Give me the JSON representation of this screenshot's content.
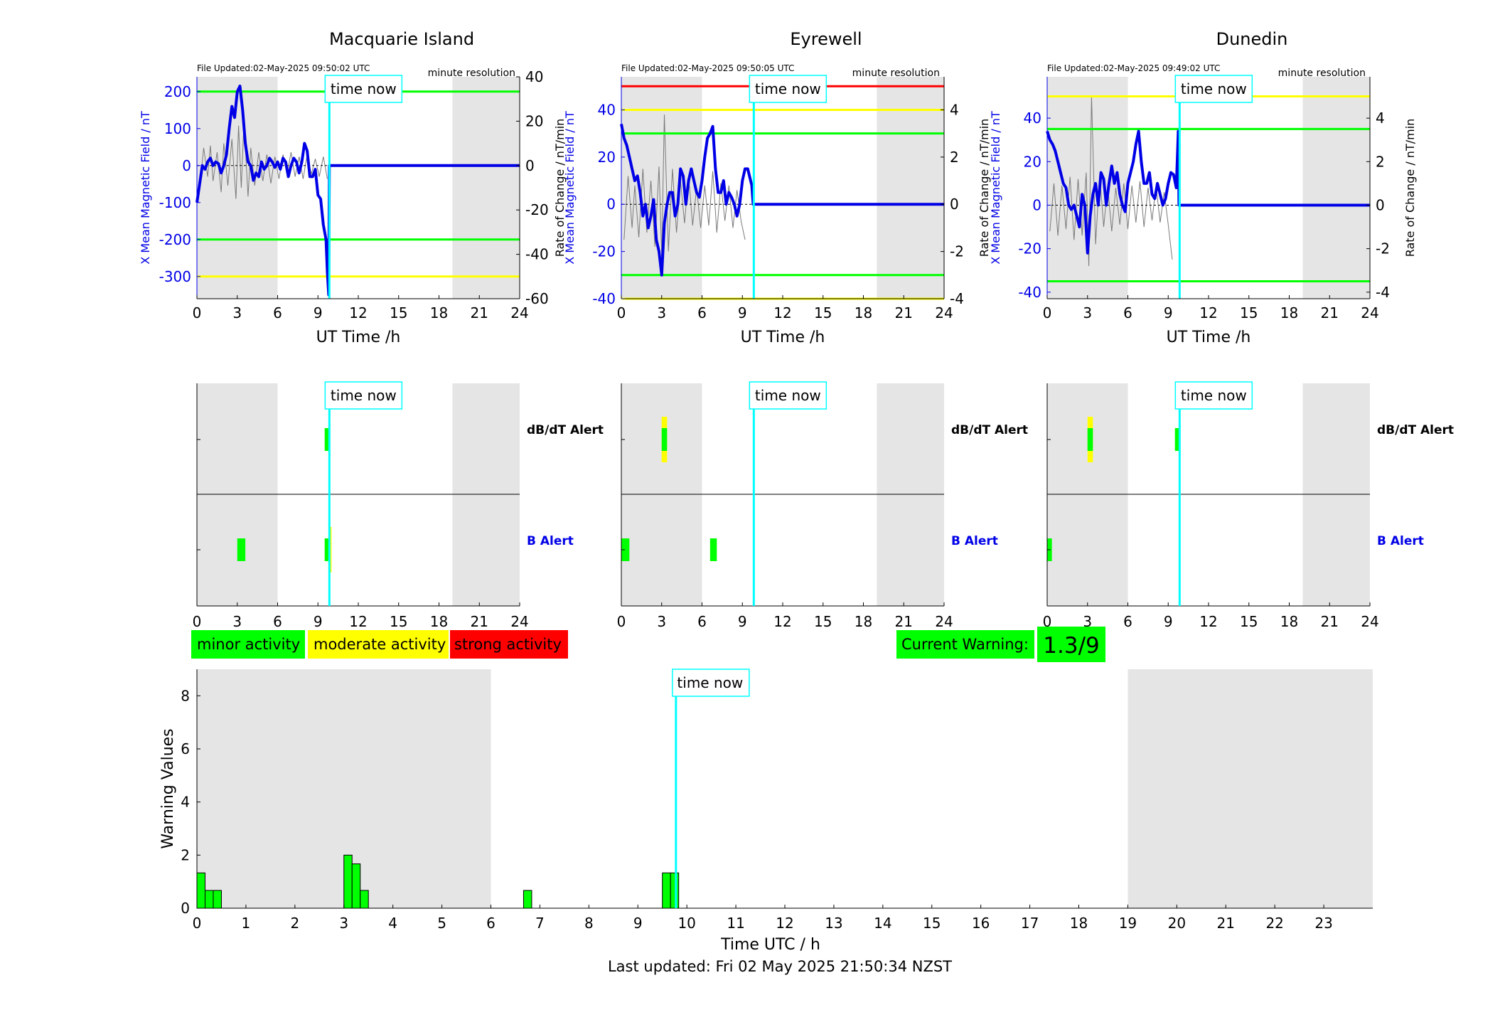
{
  "colors": {
    "blue": "#0000e6",
    "green": "#00ff00",
    "yellow": "#ffff00",
    "red": "#ff0000",
    "cyan": "#00ffff",
    "shade": "#e5e5e5",
    "gray": "#7a7a7a"
  },
  "time_now_label": "time now",
  "time_now_hour": 9.85,
  "shade_periods": [
    [
      0,
      6
    ],
    [
      19,
      24
    ]
  ],
  "legend": {
    "minor": "minor activity",
    "moderate": "moderate activity",
    "strong": "strong activity"
  },
  "current_warning": {
    "label": "Current Warning:",
    "value": "1.3/9"
  },
  "footer": "Last updated: Fri 02 May 2025 21:50:34 NZST",
  "chart_data": [
    {
      "type": "line",
      "station": "Macquarie Island",
      "updated": "File Updated:02-May-2025 09:50:02 UTC",
      "resolution": "minute resolution",
      "xlabel": "UT Time /h",
      "ylabel": "X Mean Magnetic Field / nT",
      "ylabel_right": "Rate of Change / nT/min",
      "xlim": [
        0,
        24
      ],
      "ylim": [
        -360,
        240
      ],
      "yticks": [
        -300,
        -200,
        -100,
        0,
        100,
        200
      ],
      "yticks_right": [
        -60,
        -40,
        -20,
        0,
        20,
        40
      ],
      "ylim_right": [
        -60,
        40
      ],
      "xticks": [
        0,
        3,
        6,
        9,
        12,
        15,
        18,
        21,
        24
      ],
      "thresholds": [
        {
          "value": 200,
          "color": "green"
        },
        {
          "value": -200,
          "color": "green"
        },
        {
          "value": -300,
          "color": "yellow"
        }
      ],
      "field_series": {
        "x": [
          0.0,
          0.2,
          0.4,
          0.6,
          0.8,
          1.0,
          1.2,
          1.4,
          1.6,
          1.8,
          2.0,
          2.2,
          2.4,
          2.6,
          2.8,
          3.0,
          3.2,
          3.4,
          3.6,
          3.8,
          4.0,
          4.2,
          4.4,
          4.6,
          4.8,
          5.0,
          5.2,
          5.4,
          5.6,
          5.8,
          6.0,
          6.2,
          6.4,
          6.6,
          6.8,
          7.0,
          7.2,
          7.4,
          7.6,
          7.8,
          8.0,
          8.2,
          8.4,
          8.6,
          8.8,
          9.0,
          9.2,
          9.4,
          9.6,
          9.7,
          9.8,
          9.85,
          10,
          24
        ],
        "y": [
          -100,
          -50,
          0,
          -10,
          10,
          20,
          0,
          10,
          5,
          -20,
          0,
          30,
          100,
          160,
          130,
          200,
          215,
          150,
          60,
          10,
          0,
          -40,
          -20,
          -30,
          10,
          -10,
          0,
          20,
          10,
          -5,
          10,
          -10,
          20,
          10,
          -30,
          0,
          20,
          10,
          -20,
          10,
          60,
          40,
          -30,
          -30,
          -10,
          -80,
          -90,
          -160,
          -200,
          -290,
          -350,
          0,
          0,
          0
        ]
      },
      "rate_series": {
        "x": [
          0.2,
          0.5,
          0.8,
          1.0,
          1.2,
          1.5,
          1.8,
          2.0,
          2.3,
          2.6,
          2.9,
          3.1,
          3.3,
          3.5,
          3.8,
          4.0,
          4.3,
          4.6,
          4.9,
          5.2,
          5.5,
          5.8,
          6.1,
          6.4,
          6.7,
          7.0,
          7.3,
          7.6,
          7.9,
          8.2,
          8.5,
          8.8,
          9.1,
          9.4,
          9.7
        ],
        "y": [
          -10,
          8,
          -5,
          9,
          -7,
          6,
          -12,
          10,
          -9,
          12,
          -15,
          18,
          -10,
          20,
          -14,
          8,
          -9,
          6,
          -7,
          5,
          -8,
          4,
          -6,
          5,
          -4,
          6,
          -5,
          4,
          -6,
          5,
          -4,
          3,
          -5,
          4,
          -6
        ]
      },
      "alerts": {
        "top_label": "dB/dT Alert",
        "bottom_label": "B Alert",
        "db_dt": [
          {
            "start": 9.5,
            "end": 9.8,
            "color": "green"
          }
        ],
        "b": [
          {
            "start": 3.0,
            "end": 3.6,
            "color": "green"
          },
          {
            "start": 9.5,
            "end": 9.8,
            "color": "green"
          },
          {
            "start": 9.8,
            "end": 9.95,
            "color": "yellow"
          }
        ]
      }
    },
    {
      "type": "line",
      "station": "Eyrewell",
      "updated": "File Updated:02-May-2025 09:50:05 UTC",
      "resolution": "minute resolution",
      "xlabel": "UT Time /h",
      "ylabel": "X Mean Magnetic Field / nT",
      "ylabel_right": "Rate of Change / nT/min",
      "xlim": [
        0,
        24
      ],
      "ylim": [
        -40,
        54
      ],
      "yticks": [
        -40,
        -20,
        0,
        20,
        40
      ],
      "yticks_right": [
        -4,
        -2,
        0,
        2,
        4
      ],
      "ylim_right": [
        -4,
        5.4
      ],
      "xticks": [
        0,
        3,
        6,
        9,
        12,
        15,
        18,
        21,
        24
      ],
      "thresholds": [
        {
          "value": 50,
          "color": "red"
        },
        {
          "value": 40,
          "color": "yellow"
        },
        {
          "value": 30,
          "color": "green"
        },
        {
          "value": -30,
          "color": "green"
        },
        {
          "value": -40,
          "color": "yellow"
        }
      ],
      "field_series": {
        "x": [
          0.0,
          0.2,
          0.4,
          0.6,
          0.8,
          1.0,
          1.2,
          1.4,
          1.6,
          1.8,
          2.0,
          2.2,
          2.4,
          2.6,
          2.8,
          3.0,
          3.2,
          3.4,
          3.6,
          3.8,
          4.0,
          4.2,
          4.4,
          4.6,
          4.8,
          5.0,
          5.2,
          5.4,
          5.6,
          5.8,
          6.0,
          6.2,
          6.4,
          6.6,
          6.8,
          7.0,
          7.2,
          7.4,
          7.6,
          7.8,
          8.0,
          8.2,
          8.4,
          8.6,
          8.8,
          9.0,
          9.2,
          9.4,
          9.7,
          9.8,
          24
        ],
        "y": [
          34,
          28,
          25,
          20,
          15,
          10,
          12,
          5,
          -5,
          0,
          -10,
          -5,
          2,
          -15,
          -20,
          -30,
          -8,
          0,
          5,
          5,
          -5,
          0,
          15,
          12,
          0,
          10,
          15,
          10,
          5,
          3,
          10,
          20,
          28,
          30,
          33,
          15,
          5,
          5,
          10,
          0,
          5,
          3,
          0,
          -5,
          0,
          10,
          15,
          15,
          8,
          0,
          0
        ]
      },
      "rate_series": {
        "x": [
          0.2,
          0.5,
          0.8,
          1.0,
          1.3,
          1.6,
          1.9,
          2.2,
          2.5,
          2.8,
          3.0,
          3.2,
          3.5,
          3.8,
          4.1,
          4.4,
          4.7,
          5.0,
          5.3,
          5.6,
          5.9,
          6.2,
          6.5,
          6.8,
          7.1,
          7.4,
          7.7,
          8.0,
          8.3,
          8.6,
          8.9,
          9.2
        ],
        "y": [
          -1.5,
          1.2,
          -1.0,
          0.8,
          -1.4,
          1.5,
          -1.2,
          1.0,
          -1.8,
          1.6,
          -2.2,
          3.8,
          -2.0,
          1.5,
          -1.2,
          1.0,
          -0.8,
          1.2,
          -0.9,
          0.7,
          -1.0,
          0.8,
          -0.9,
          1.4,
          -1.2,
          0.9,
          -0.7,
          0.8,
          -1.0,
          0.6,
          -0.7,
          -1.5
        ]
      },
      "alerts": {
        "top_label": "dB/dT Alert",
        "bottom_label": "B Alert",
        "db_dt": [
          {
            "start": 3.0,
            "end": 3.4,
            "color": "yellow",
            "tall": true
          },
          {
            "start": 3.0,
            "end": 3.4,
            "color": "green"
          }
        ],
        "b": [
          {
            "start": 0.0,
            "end": 0.6,
            "color": "green"
          },
          {
            "start": 6.6,
            "end": 7.1,
            "color": "green"
          }
        ]
      }
    },
    {
      "type": "line",
      "station": "Dunedin",
      "updated": "File Updated:02-May-2025 09:49:02 UTC",
      "resolution": "minute resolution",
      "xlabel": "UT Time /h",
      "ylabel": "X Mean Magnetic Field / nT",
      "ylabel_right": "Rate of Change / nT/min",
      "xlim": [
        0,
        24
      ],
      "ylim": [
        -43,
        59
      ],
      "yticks": [
        -40,
        -20,
        0,
        20,
        40
      ],
      "yticks_right": [
        -4,
        -2,
        0,
        2,
        4
      ],
      "ylim_right": [
        -4.3,
        5.9
      ],
      "xticks": [
        0,
        3,
        6,
        9,
        12,
        15,
        18,
        21,
        24
      ],
      "thresholds": [
        {
          "value": 50,
          "color": "yellow"
        },
        {
          "value": 35,
          "color": "green"
        },
        {
          "value": -35,
          "color": "green"
        }
      ],
      "field_series": {
        "x": [
          0.0,
          0.2,
          0.4,
          0.6,
          0.8,
          1.0,
          1.2,
          1.4,
          1.6,
          1.8,
          2.0,
          2.2,
          2.4,
          2.6,
          2.8,
          3.0,
          3.2,
          3.4,
          3.6,
          3.8,
          4.0,
          4.2,
          4.4,
          4.6,
          4.8,
          5.0,
          5.2,
          5.4,
          5.6,
          5.8,
          6.0,
          6.2,
          6.4,
          6.6,
          6.8,
          7.0,
          7.2,
          7.4,
          7.6,
          7.8,
          8.0,
          8.2,
          8.4,
          8.6,
          8.8,
          9.0,
          9.2,
          9.4,
          9.6,
          9.7,
          9.75,
          9.8,
          24
        ],
        "y": [
          34,
          30,
          28,
          25,
          20,
          15,
          10,
          8,
          0,
          -2,
          0,
          -5,
          -10,
          5,
          0,
          -22,
          -5,
          5,
          10,
          0,
          15,
          12,
          0,
          10,
          18,
          10,
          15,
          5,
          0,
          -3,
          10,
          15,
          20,
          28,
          34,
          20,
          10,
          10,
          15,
          5,
          3,
          10,
          5,
          0,
          3,
          10,
          15,
          14,
          8,
          25,
          34,
          0,
          0
        ]
      },
      "rate_series": {
        "x": [
          0.2,
          0.5,
          0.8,
          1.1,
          1.4,
          1.7,
          2.0,
          2.3,
          2.6,
          2.9,
          3.1,
          3.3,
          3.6,
          3.9,
          4.2,
          4.5,
          4.8,
          5.1,
          5.4,
          5.7,
          6.0,
          6.3,
          6.6,
          6.9,
          7.2,
          7.5,
          7.8,
          8.1,
          8.4,
          8.7,
          9.0,
          9.3
        ],
        "y": [
          -1.2,
          1.0,
          -1.4,
          0.9,
          -1.1,
          1.3,
          -1.6,
          1.2,
          -1.4,
          1.5,
          -2.8,
          5.0,
          -1.8,
          1.4,
          -1.0,
          0.9,
          -1.2,
          0.8,
          -0.9,
          1.0,
          -1.1,
          0.9,
          -0.8,
          1.1,
          -1.0,
          0.8,
          -0.7,
          0.9,
          -0.8,
          0.6,
          -0.9,
          -2.5
        ]
      },
      "alerts": {
        "top_label": "dB/dT Alert",
        "bottom_label": "B Alert",
        "db_dt": [
          {
            "start": 3.0,
            "end": 3.4,
            "color": "yellow",
            "tall": true
          },
          {
            "start": 3.0,
            "end": 3.4,
            "color": "green"
          },
          {
            "start": 9.5,
            "end": 9.8,
            "color": "green"
          }
        ],
        "b": [
          {
            "start": 0.0,
            "end": 0.35,
            "color": "green"
          }
        ]
      }
    },
    {
      "type": "bar",
      "xlabel": "Time UTC / h",
      "ylabel": "Warning Values",
      "xlim": [
        0,
        24
      ],
      "ylim": [
        0,
        9
      ],
      "yticks": [
        0,
        2,
        4,
        6,
        8
      ],
      "xticks": [
        0,
        1,
        2,
        3,
        4,
        5,
        6,
        7,
        8,
        9,
        10,
        11,
        12,
        13,
        14,
        15,
        16,
        17,
        18,
        19,
        20,
        21,
        22,
        23
      ],
      "bar_width": 0.1667,
      "bars": [
        {
          "x": 0.0,
          "value": 1.33
        },
        {
          "x": 0.1667,
          "value": 0.67
        },
        {
          "x": 0.3333,
          "value": 0.67
        },
        {
          "x": 3.0,
          "value": 2.0
        },
        {
          "x": 3.1667,
          "value": 1.67
        },
        {
          "x": 3.3333,
          "value": 0.67
        },
        {
          "x": 6.6667,
          "value": 0.67
        },
        {
          "x": 9.5,
          "value": 1.33
        },
        {
          "x": 9.6667,
          "value": 1.33
        }
      ]
    }
  ]
}
